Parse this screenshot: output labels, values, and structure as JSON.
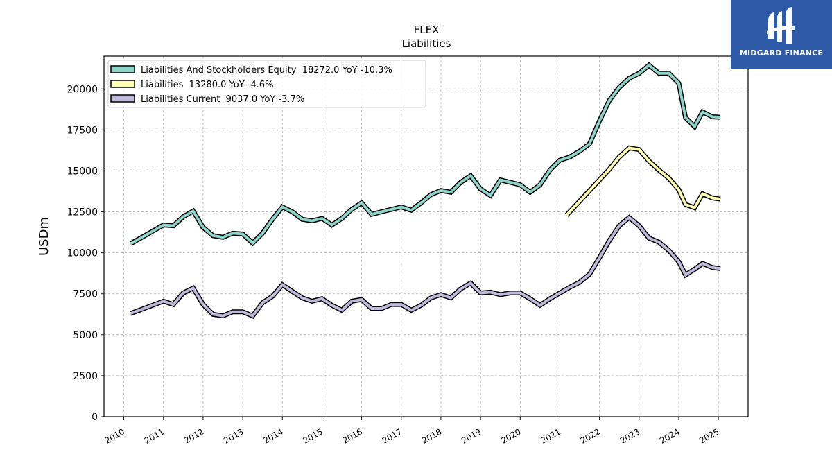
{
  "chart_data": {
    "type": "line",
    "title": "FLEX",
    "subtitle": "Liabilities",
    "xlabel": "",
    "ylabel": "USDm",
    "xlim": [
      2009.5,
      2025.75
    ],
    "ylim": [
      0,
      22000
    ],
    "yticks": [
      0,
      2500,
      5000,
      7500,
      10000,
      12500,
      15000,
      17500,
      20000
    ],
    "xticks": [
      "2010",
      "2011",
      "2012",
      "2013",
      "2014",
      "2015",
      "2016",
      "2017",
      "2018",
      "2019",
      "2020",
      "2021",
      "2022",
      "2023",
      "2024",
      "2025"
    ],
    "grid": true,
    "legend_position": "top-left",
    "series": [
      {
        "name": "Liabilities And Stockholders Equity  18272.0 YoY -10.3%",
        "color": "#8dd3c7",
        "points": [
          [
            2010.17,
            10550
          ],
          [
            2011.0,
            11700
          ],
          [
            2011.25,
            11650
          ],
          [
            2011.5,
            12200
          ],
          [
            2011.75,
            12550
          ],
          [
            2012.0,
            11550
          ],
          [
            2012.25,
            11050
          ],
          [
            2012.5,
            10950
          ],
          [
            2012.75,
            11200
          ],
          [
            2013.0,
            11150
          ],
          [
            2013.25,
            10600
          ],
          [
            2013.5,
            11200
          ],
          [
            2013.75,
            12050
          ],
          [
            2014.0,
            12800
          ],
          [
            2014.25,
            12500
          ],
          [
            2014.5,
            12050
          ],
          [
            2014.75,
            11950
          ],
          [
            2015.0,
            12100
          ],
          [
            2015.25,
            11700
          ],
          [
            2015.5,
            12100
          ],
          [
            2015.75,
            12650
          ],
          [
            2016.0,
            13050
          ],
          [
            2016.25,
            12350
          ],
          [
            2016.5,
            12500
          ],
          [
            2016.75,
            12650
          ],
          [
            2017.0,
            12800
          ],
          [
            2017.25,
            12600
          ],
          [
            2017.5,
            13050
          ],
          [
            2017.75,
            13550
          ],
          [
            2018.0,
            13800
          ],
          [
            2018.25,
            13700
          ],
          [
            2018.5,
            14300
          ],
          [
            2018.75,
            14700
          ],
          [
            2019.0,
            13900
          ],
          [
            2019.25,
            13500
          ],
          [
            2019.5,
            14450
          ],
          [
            2019.75,
            14300
          ],
          [
            2020.0,
            14150
          ],
          [
            2020.25,
            13700
          ],
          [
            2020.5,
            14150
          ],
          [
            2020.75,
            15050
          ],
          [
            2021.0,
            15650
          ],
          [
            2021.25,
            15850
          ],
          [
            2021.5,
            16200
          ],
          [
            2021.75,
            16650
          ],
          [
            2022.0,
            18050
          ],
          [
            2022.25,
            19300
          ],
          [
            2022.5,
            20100
          ],
          [
            2022.75,
            20650
          ],
          [
            2023.0,
            20950
          ],
          [
            2023.25,
            21450
          ],
          [
            2023.5,
            20950
          ],
          [
            2023.75,
            20950
          ],
          [
            2024.0,
            20350
          ],
          [
            2024.17,
            18250
          ],
          [
            2024.4,
            17700
          ],
          [
            2024.6,
            18600
          ],
          [
            2024.85,
            18300
          ],
          [
            2025.05,
            18272
          ]
        ]
      },
      {
        "name": "Liabilities  13280.0 YoY -4.6%",
        "color": "#ffffb3",
        "points": [
          [
            2021.17,
            12300
          ],
          [
            2021.5,
            13150
          ],
          [
            2021.75,
            13800
          ],
          [
            2022.0,
            14450
          ],
          [
            2022.25,
            15100
          ],
          [
            2022.5,
            15850
          ],
          [
            2022.75,
            16400
          ],
          [
            2023.0,
            16300
          ],
          [
            2023.25,
            15600
          ],
          [
            2023.5,
            15050
          ],
          [
            2023.75,
            14550
          ],
          [
            2024.0,
            13850
          ],
          [
            2024.17,
            12950
          ],
          [
            2024.4,
            12750
          ],
          [
            2024.6,
            13600
          ],
          [
            2024.85,
            13350
          ],
          [
            2025.05,
            13280
          ]
        ]
      },
      {
        "name": "Liabilities Current  9037.0 YoY -3.7%",
        "color": "#bebada",
        "points": [
          [
            2010.17,
            6300
          ],
          [
            2011.0,
            7050
          ],
          [
            2011.25,
            6850
          ],
          [
            2011.5,
            7550
          ],
          [
            2011.75,
            7850
          ],
          [
            2012.0,
            6850
          ],
          [
            2012.25,
            6250
          ],
          [
            2012.5,
            6150
          ],
          [
            2012.75,
            6400
          ],
          [
            2013.0,
            6400
          ],
          [
            2013.25,
            6150
          ],
          [
            2013.5,
            6950
          ],
          [
            2013.75,
            7350
          ],
          [
            2014.0,
            8050
          ],
          [
            2014.25,
            7650
          ],
          [
            2014.5,
            7250
          ],
          [
            2014.75,
            7050
          ],
          [
            2015.0,
            7200
          ],
          [
            2015.25,
            6800
          ],
          [
            2015.5,
            6500
          ],
          [
            2015.75,
            7050
          ],
          [
            2016.0,
            7150
          ],
          [
            2016.25,
            6600
          ],
          [
            2016.5,
            6600
          ],
          [
            2016.75,
            6850
          ],
          [
            2017.0,
            6850
          ],
          [
            2017.25,
            6500
          ],
          [
            2017.5,
            6800
          ],
          [
            2017.75,
            7250
          ],
          [
            2018.0,
            7450
          ],
          [
            2018.25,
            7250
          ],
          [
            2018.5,
            7800
          ],
          [
            2018.75,
            8150
          ],
          [
            2019.0,
            7550
          ],
          [
            2019.25,
            7600
          ],
          [
            2019.5,
            7450
          ],
          [
            2019.75,
            7550
          ],
          [
            2020.0,
            7550
          ],
          [
            2020.25,
            7200
          ],
          [
            2020.5,
            6800
          ],
          [
            2020.75,
            7200
          ],
          [
            2021.0,
            7550
          ],
          [
            2021.25,
            7900
          ],
          [
            2021.5,
            8200
          ],
          [
            2021.75,
            8700
          ],
          [
            2022.0,
            9700
          ],
          [
            2022.25,
            10750
          ],
          [
            2022.5,
            11650
          ],
          [
            2022.75,
            12150
          ],
          [
            2023.0,
            11650
          ],
          [
            2023.25,
            10900
          ],
          [
            2023.5,
            10650
          ],
          [
            2023.75,
            10150
          ],
          [
            2024.0,
            9450
          ],
          [
            2024.17,
            8650
          ],
          [
            2024.4,
            9000
          ],
          [
            2024.6,
            9350
          ],
          [
            2024.85,
            9100
          ],
          [
            2025.05,
            9037
          ]
        ]
      }
    ]
  },
  "logo": {
    "text": "MIDGARD FINANCE",
    "color": "#2f5aa8"
  }
}
